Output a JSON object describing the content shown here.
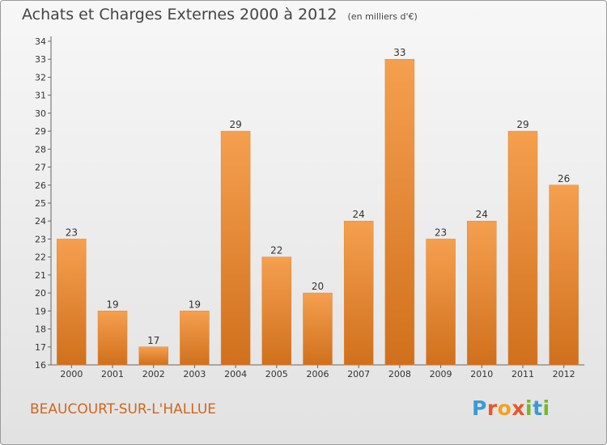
{
  "title": "Achats et Charges Externes 2000 à 2012",
  "subtitle": "(en milliers d'€)",
  "location": "BEAUCOURT-SUR-L'HALLUE",
  "logo": {
    "text": "Proxiti",
    "letters": [
      {
        "char": "P",
        "color": "#3a9ad9"
      },
      {
        "char": "r",
        "color": "#e8562a"
      },
      {
        "char": "o",
        "color": "#f3a21c"
      },
      {
        "char": "x",
        "color": "#e8562a"
      },
      {
        "char": "i",
        "color": "#76b82a"
      },
      {
        "char": "t",
        "color": "#3a9ad9"
      },
      {
        "char": "i",
        "color": "#76b82a"
      }
    ]
  },
  "colors": {
    "bar_light": "#f5a04f",
    "bar_dark": "#d0701c",
    "accent_text": "#d1661d"
  },
  "chart_data": {
    "type": "bar",
    "categories": [
      "2000",
      "2001",
      "2002",
      "2003",
      "2004",
      "2005",
      "2006",
      "2007",
      "2008",
      "2009",
      "2010",
      "2011",
      "2012"
    ],
    "values": [
      23,
      19,
      17,
      19,
      29,
      22,
      20,
      24,
      33,
      23,
      24,
      29,
      26
    ],
    "ylim": [
      16,
      34
    ],
    "yticks": [
      16,
      17,
      18,
      19,
      20,
      21,
      22,
      23,
      24,
      25,
      26,
      27,
      28,
      29,
      30,
      31,
      32,
      33,
      34
    ],
    "grid": false,
    "data_labels": true,
    "title": "Achats et Charges Externes 2000 à 2012",
    "subtitle": "(en milliers d'€)"
  }
}
